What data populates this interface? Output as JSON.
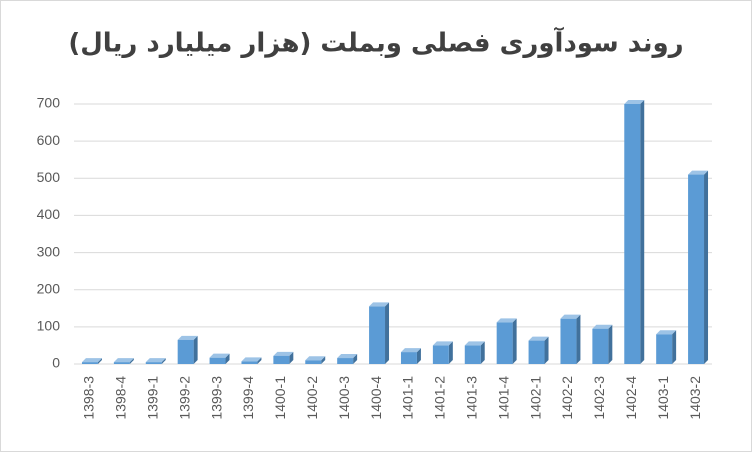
{
  "chart_data": {
    "type": "bar",
    "title": "روند سودآوری فصلی وبملت (هزار میلیارد ریال)",
    "categories": [
      "1398-3",
      "1398-4",
      "1399-1",
      "1399-2",
      "1399-3",
      "1399-4",
      "1400-1",
      "1400-2",
      "1400-3",
      "1400-4",
      "1401-1",
      "1401-2",
      "1401-3",
      "1401-4",
      "1402-1",
      "1402-2",
      "1402-3",
      "1402-4",
      "1403-1",
      "1403-2"
    ],
    "values": [
      5,
      5,
      5,
      65,
      17,
      7,
      22,
      10,
      16,
      155,
      32,
      50,
      50,
      112,
      63,
      122,
      95,
      700,
      80,
      510
    ],
    "color": "#5b9bd5",
    "ylim": [
      0,
      700
    ],
    "yticks": [
      0,
      100,
      200,
      300,
      400,
      500,
      600,
      700
    ],
    "grid": true
  }
}
